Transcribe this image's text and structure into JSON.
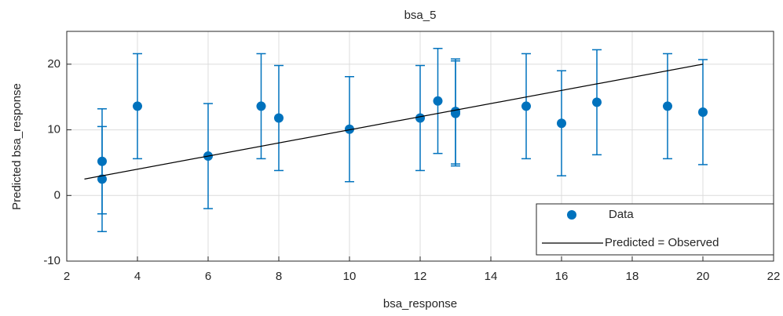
{
  "chart_data": {
    "type": "scatter",
    "title": "bsa_5",
    "x_label": "bsa_response",
    "y_label": "Predicted bsa_response",
    "xlim": [
      2,
      22
    ],
    "ylim": [
      -10,
      25
    ],
    "xticks": [
      2,
      4,
      6,
      8,
      10,
      12,
      14,
      16,
      18,
      20,
      22
    ],
    "yticks": [
      -10,
      0,
      10,
      20
    ],
    "grid": true,
    "legend": "lower right",
    "series": [
      {
        "name": "Data",
        "type": "errorbar",
        "color": "#0072bd",
        "x": [
          3,
          3,
          4,
          6,
          7.5,
          8,
          10,
          12,
          12.5,
          13,
          13,
          15,
          16,
          17,
          19,
          20
        ],
        "values": [
          5.2,
          2.5,
          13.6,
          6.0,
          13.6,
          11.8,
          10.1,
          11.8,
          14.4,
          12.8,
          12.5,
          13.6,
          11.0,
          14.2,
          13.6,
          12.7
        ],
        "errors": [
          8,
          8,
          8,
          8,
          8,
          8,
          8,
          8,
          8,
          8,
          8,
          8,
          8,
          8,
          8,
          8
        ]
      },
      {
        "name": "Predicted = Observed",
        "type": "line",
        "color": "#000000",
        "x": [
          2.5,
          20
        ],
        "values": [
          2.5,
          20
        ]
      }
    ]
  }
}
